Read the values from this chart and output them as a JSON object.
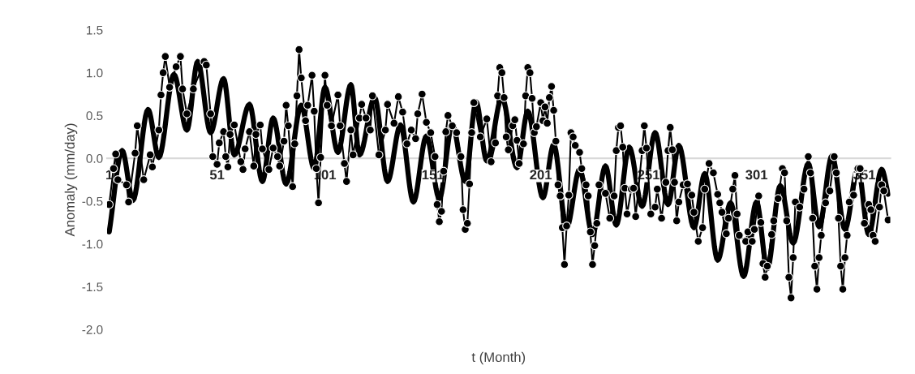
{
  "chart_data": {
    "type": "line",
    "xlabel": "t (Month)",
    "ylabel": "Anomaly (mm/day)",
    "xlim": [
      0,
      363
    ],
    "ylim": [
      -2.0,
      1.5
    ],
    "xticks": [
      1,
      51,
      101,
      151,
      201,
      251,
      301,
      351
    ],
    "yticks": [
      {
        "value": -2.0,
        "label": "-2.0"
      },
      {
        "value": -1.5,
        "label": "-1.5"
      },
      {
        "value": -1.0,
        "label": "-1.0"
      },
      {
        "value": -0.5,
        "label": "-0.5"
      },
      {
        "value": 0.0,
        "label": "0.0"
      },
      {
        "value": 0.5,
        "label": "0.5"
      },
      {
        "value": 1.0,
        "label": "1.0"
      },
      {
        "value": 1.5,
        "label": "1.5"
      }
    ],
    "grid": false,
    "legend": false,
    "series": [
      {
        "color": "#000000",
        "marker": "circle",
        "line_style": "solid",
        "x": [
          1,
          3,
          4,
          5,
          9,
          10,
          13,
          14,
          17,
          20,
          21,
          24,
          25,
          26,
          27,
          29,
          32,
          34,
          35,
          37,
          40,
          45,
          46,
          48,
          49,
          51,
          52,
          54,
          55,
          56,
          57,
          59,
          62,
          63,
          64,
          66,
          68,
          69,
          71,
          72,
          75,
          77,
          79,
          80,
          82,
          83,
          84,
          86,
          87,
          88,
          89,
          90,
          92,
          93,
          95,
          96,
          97,
          98,
          99,
          101,
          102,
          104,
          107,
          108,
          110,
          111,
          113,
          114,
          117,
          118,
          120,
          122,
          123,
          126,
          129,
          130,
          133,
          135,
          137,
          139,
          141,
          143,
          144,
          146,
          148,
          150,
          152,
          153,
          154,
          155,
          156,
          157,
          158,
          160,
          162,
          164,
          165,
          166,
          167,
          168,
          169,
          170,
          173,
          176,
          178,
          180,
          181,
          182,
          183,
          184,
          185,
          186,
          188,
          189,
          190,
          191,
          193,
          194,
          195,
          196,
          197,
          198,
          199,
          201,
          202,
          203,
          204,
          205,
          206,
          207,
          208,
          209,
          210,
          211,
          212,
          213,
          214,
          215,
          216,
          217,
          219,
          220,
          222,
          223,
          224,
          225,
          226,
          227,
          228,
          231,
          233,
          235,
          236,
          237,
          238,
          239,
          240,
          241,
          243,
          244,
          245,
          248,
          249,
          250,
          252,
          254,
          255,
          257,
          259,
          260,
          261,
          262,
          263,
          264,
          265,
          267,
          269,
          271,
          272,
          274,
          276,
          277,
          279,
          281,
          283,
          284,
          285,
          287,
          288,
          290,
          291,
          292,
          293,
          296,
          297,
          299,
          300,
          302,
          303,
          304,
          305,
          306,
          308,
          309,
          311,
          313,
          314,
          315,
          316,
          317,
          318,
          319,
          321,
          323,
          325,
          326,
          327,
          328,
          329,
          330,
          331,
          333,
          335,
          337,
          338,
          339,
          340,
          341,
          342,
          343,
          344,
          346,
          348,
          349,
          351,
          353,
          354,
          355,
          356,
          358,
          359,
          360,
          362
        ],
        "values": [
          -0.54,
          -0.12,
          0.05,
          -0.25,
          -0.31,
          -0.51,
          0.06,
          0.38,
          -0.25,
          0.04,
          -0.1,
          0.33,
          0.74,
          1.0,
          1.19,
          0.83,
          1.07,
          1.19,
          0.81,
          0.52,
          0.81,
          1.13,
          1.09,
          0.52,
          0.02,
          -0.07,
          0.18,
          0.31,
          0.02,
          -0.1,
          0.28,
          0.39,
          -0.04,
          -0.13,
          0.11,
          0.31,
          -0.09,
          0.28,
          0.39,
          0.11,
          -0.13,
          0.12,
          0.02,
          -0.09,
          0.2,
          0.62,
          0.38,
          -0.33,
          0.17,
          0.73,
          1.27,
          0.94,
          0.44,
          0.62,
          0.97,
          0.55,
          -0.12,
          -0.52,
          0.01,
          0.97,
          0.62,
          0.38,
          0.74,
          0.38,
          -0.06,
          -0.27,
          0.33,
          0.04,
          0.47,
          0.63,
          0.47,
          0.33,
          0.73,
          0.04,
          0.33,
          0.63,
          0.41,
          0.72,
          0.54,
          0.17,
          0.33,
          0.23,
          0.52,
          0.75,
          0.42,
          0.3,
          0.02,
          -0.54,
          -0.74,
          -0.62,
          -0.15,
          0.31,
          0.5,
          0.38,
          0.3,
          0.02,
          -0.6,
          -0.83,
          -0.76,
          -0.3,
          0.3,
          0.65,
          0.25,
          0.46,
          -0.04,
          0.18,
          0.73,
          1.06,
          1.0,
          0.71,
          0.25,
          0.1,
          0.38,
          0.45,
          0.21,
          -0.06,
          0.17,
          0.73,
          1.06,
          1.0,
          0.7,
          0.3,
          0.37,
          0.65,
          0.44,
          0.6,
          0.41,
          0.71,
          0.84,
          0.56,
          0.2,
          -0.31,
          -0.44,
          -0.81,
          -1.24,
          -0.79,
          -0.43,
          0.3,
          0.25,
          0.15,
          0.07,
          -0.12,
          -0.31,
          -0.44,
          -0.86,
          -1.24,
          -1.02,
          -0.76,
          -0.31,
          -0.41,
          -0.7,
          -0.44,
          0.09,
          0.36,
          0.38,
          0.13,
          -0.35,
          -0.65,
          -0.36,
          -0.35,
          -0.68,
          0.09,
          0.38,
          0.12,
          -0.65,
          -0.57,
          -0.36,
          -0.7,
          -0.28,
          0.09,
          0.36,
          0.1,
          -0.28,
          -0.73,
          -0.51,
          -0.31,
          -0.3,
          -0.43,
          -0.63,
          -0.97,
          -0.81,
          -0.36,
          -0.06,
          -0.17,
          -0.42,
          -0.52,
          -0.63,
          -0.88,
          -0.7,
          -0.36,
          -0.2,
          -0.65,
          -0.9,
          -0.97,
          -0.86,
          -0.97,
          -0.83,
          -0.44,
          -0.75,
          -1.23,
          -1.39,
          -1.26,
          -0.89,
          -0.73,
          -0.47,
          -0.12,
          -0.17,
          -0.73,
          -1.39,
          -1.63,
          -1.16,
          -0.51,
          -0.57,
          -0.36,
          0.02,
          -0.17,
          -0.7,
          -1.26,
          -1.53,
          -1.16,
          -0.9,
          -0.52,
          -0.38,
          0.02,
          -0.17,
          -0.7,
          -1.26,
          -1.53,
          -1.16,
          -0.9,
          -0.51,
          -0.43,
          -0.12,
          -0.12,
          -0.76,
          -0.54,
          -0.6,
          -0.9,
          -0.97,
          -0.57,
          -0.31,
          -0.38,
          -0.72
        ]
      },
      {
        "color": "#000000",
        "marker": "none",
        "line_style": "solid",
        "x": [
          1,
          7,
          12,
          19,
          24,
          31,
          37,
          42,
          48,
          54,
          59,
          66,
          72,
          77,
          83,
          90,
          96,
          101,
          107,
          113,
          117,
          124,
          130,
          136,
          142,
          148,
          154,
          160,
          166,
          171,
          176,
          183,
          190,
          195,
          202,
          207,
          213,
          219,
          225,
          231,
          236,
          242,
          248,
          254,
          260,
          265,
          272,
          277,
          283,
          289,
          295,
          301,
          306,
          312,
          318,
          325,
          330,
          336,
          342,
          348,
          353,
          359,
          362
        ],
        "values": [
          -0.86,
          0.09,
          -0.49,
          0.57,
          0.01,
          0.98,
          0.33,
          1.13,
          0.3,
          0.93,
          0.04,
          0.63,
          -0.27,
          0.47,
          -0.3,
          0.62,
          -0.12,
          0.83,
          0.07,
          0.86,
          0.04,
          0.71,
          -0.27,
          0.39,
          -0.51,
          0.26,
          -0.47,
          0.39,
          -0.27,
          0.66,
          -0.03,
          0.71,
          -0.11,
          0.55,
          -0.46,
          0.16,
          -0.81,
          -0.13,
          -0.89,
          -0.09,
          -0.78,
          0.13,
          -0.56,
          0.3,
          -0.54,
          0.15,
          -0.81,
          -0.18,
          -1.19,
          -0.52,
          -1.38,
          -0.51,
          -1.29,
          -0.32,
          -0.99,
          -0.06,
          -0.8,
          0.03,
          -0.83,
          -0.11,
          -0.89,
          -0.13,
          -0.42
        ]
      }
    ]
  }
}
